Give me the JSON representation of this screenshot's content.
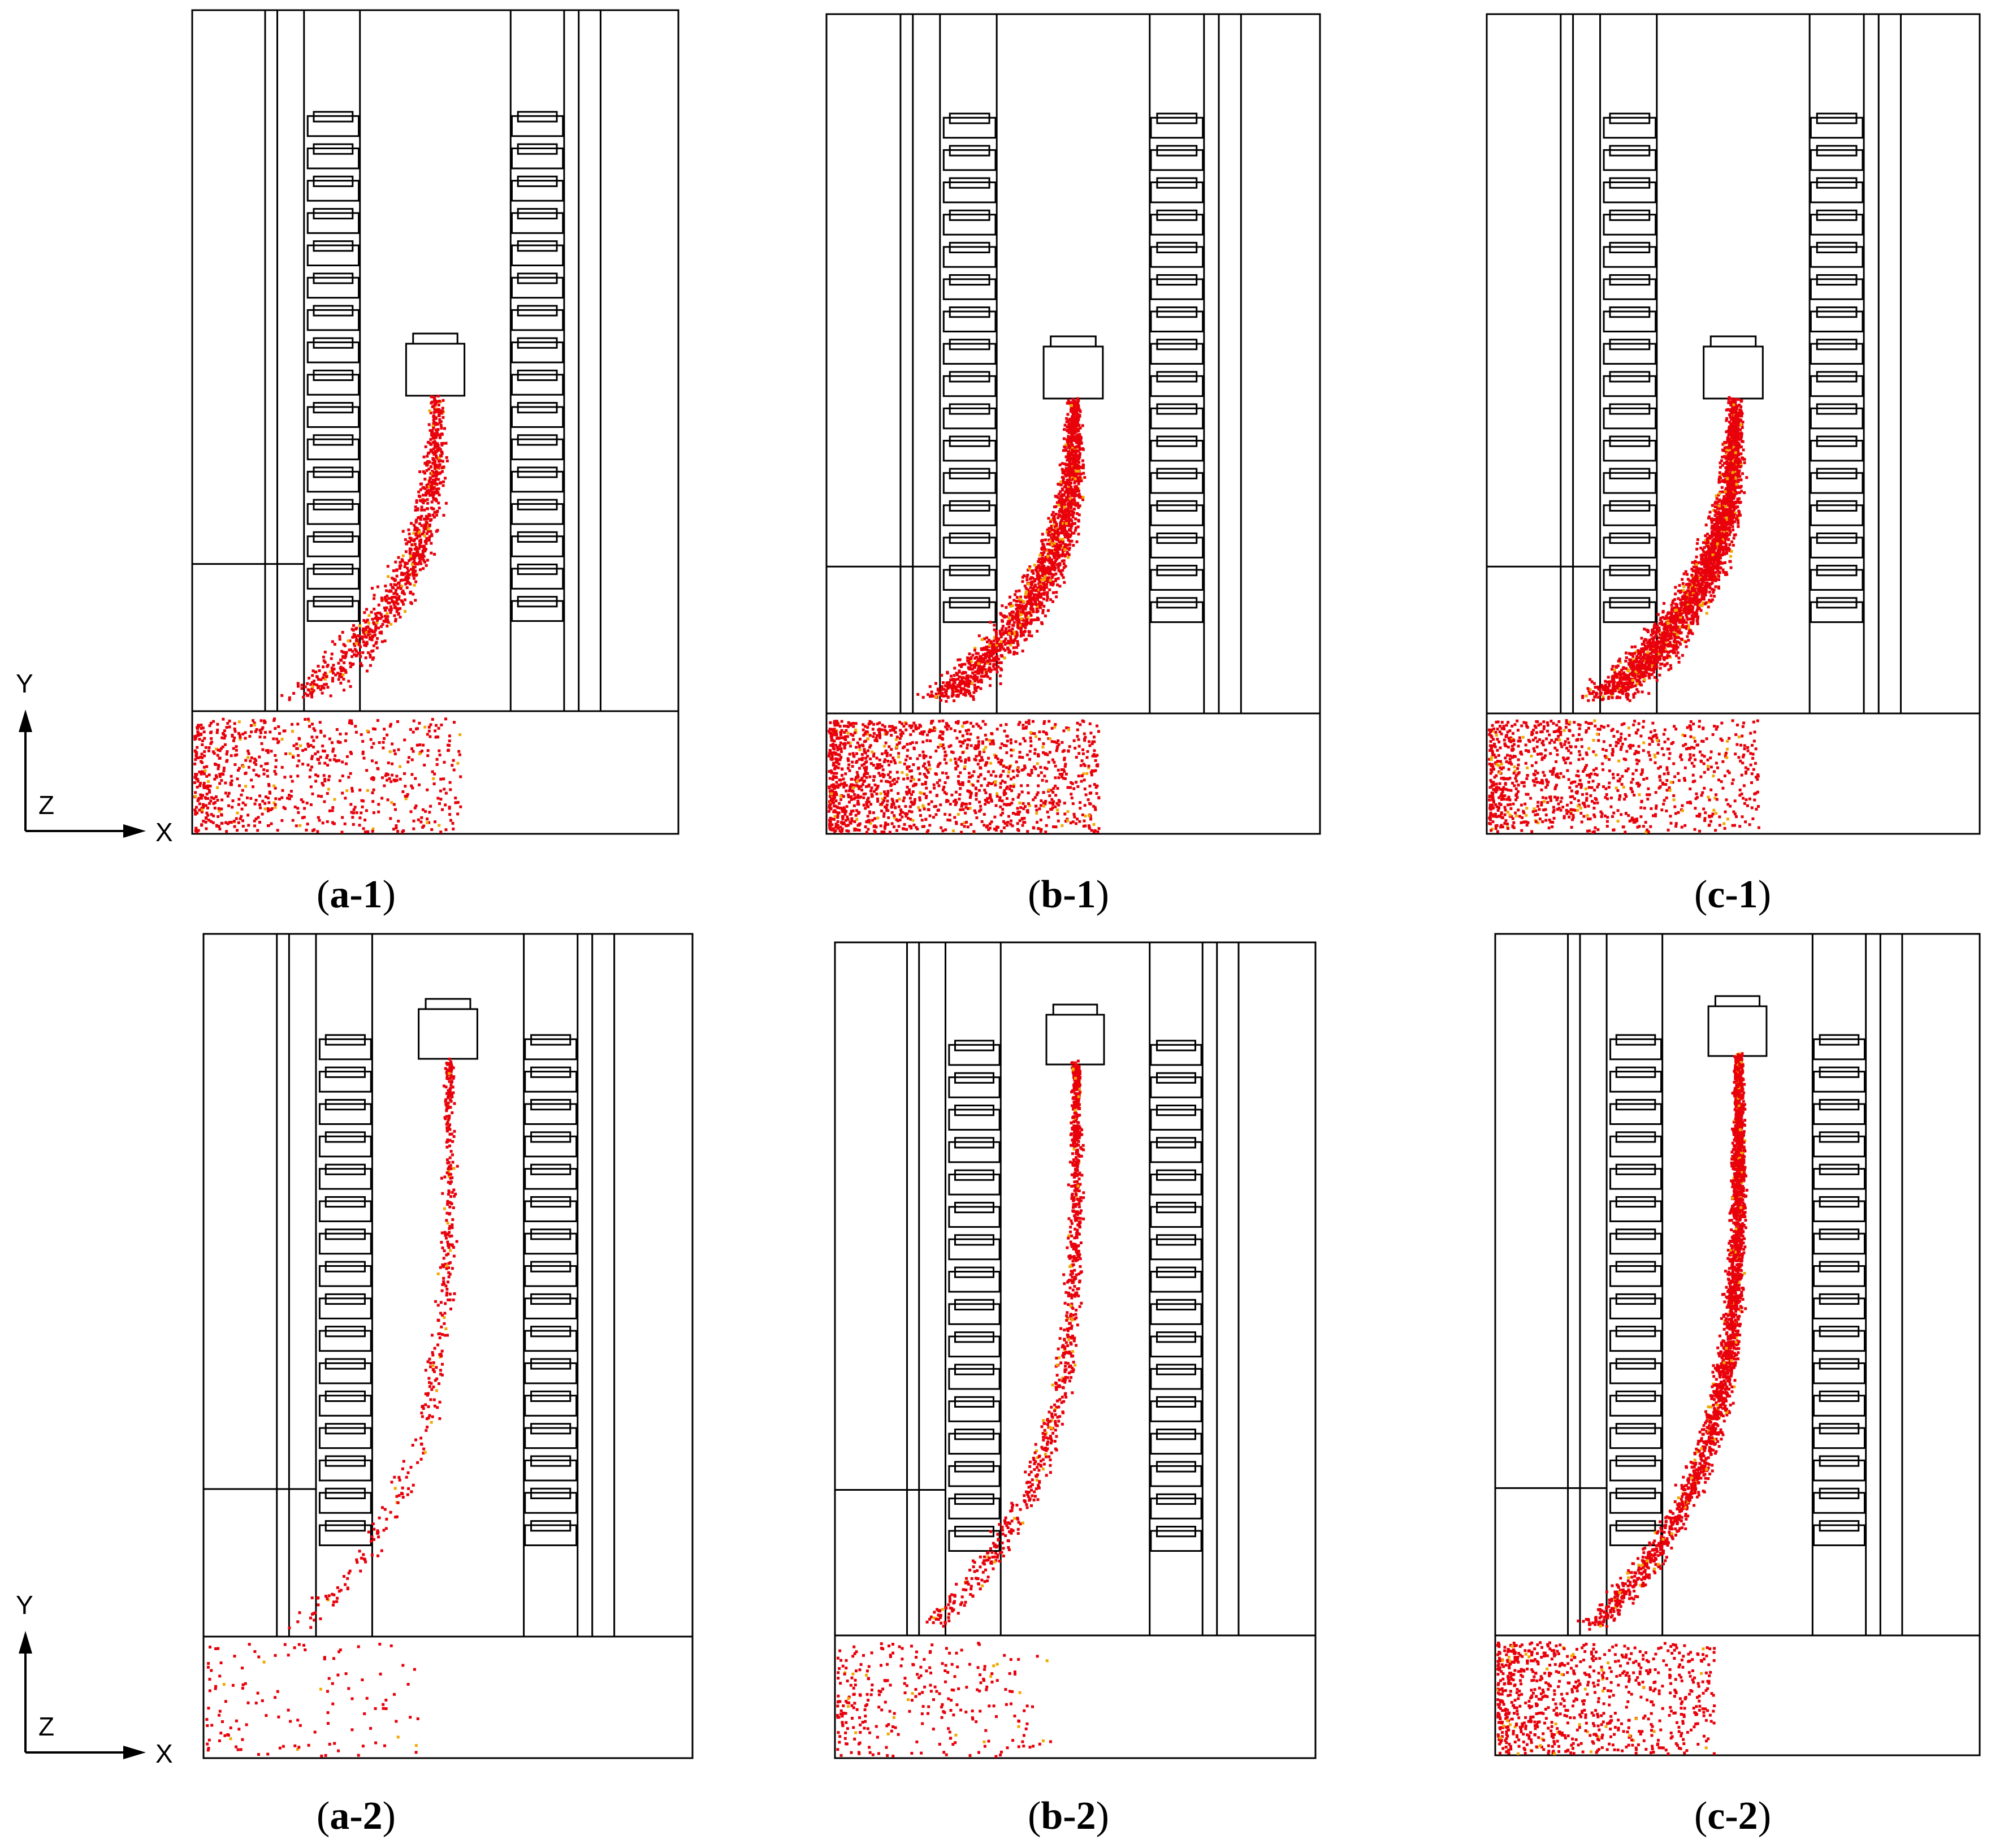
{
  "colors": {
    "particle": "#e8000b",
    "particle_alt": "#f2a900",
    "line": "#000000"
  },
  "axes_icon": {
    "y": "Y",
    "z": "Z",
    "x": "X"
  },
  "panels": [
    {
      "id": "a-1",
      "paren_open": "(",
      "letter": "a-1",
      "paren_close": ")",
      "density": 0.35,
      "row": 1
    },
    {
      "id": "b-1",
      "paren_open": "(",
      "letter": "b-1",
      "paren_close": ")",
      "density": 0.7,
      "row": 1
    },
    {
      "id": "c-1",
      "paren_open": "(",
      "letter": "c-1",
      "paren_close": ")",
      "density": 1.0,
      "row": 1
    },
    {
      "id": "a-2",
      "paren_open": "(",
      "letter": "a-2",
      "paren_close": ")",
      "density": 0.15,
      "row": 2
    },
    {
      "id": "b-2",
      "paren_open": "(",
      "letter": "b-2",
      "paren_close": ")",
      "density": 0.35,
      "row": 2
    },
    {
      "id": "c-2",
      "paren_open": "(",
      "letter": "c-2",
      "paren_close": ")",
      "density": 1.0,
      "row": 2
    }
  ]
}
